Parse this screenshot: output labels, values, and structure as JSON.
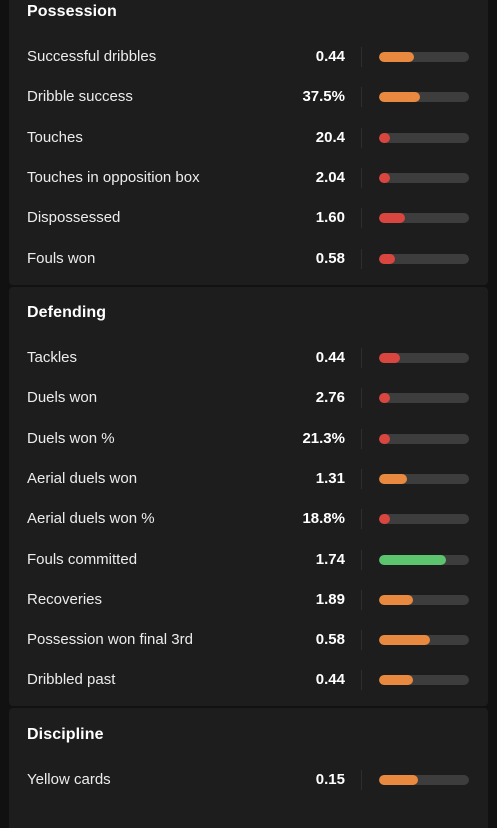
{
  "colors": {
    "orange": "#e8893f",
    "red": "#d9453f",
    "green": "#5cc46e",
    "track": "#3d3d3d"
  },
  "sections": [
    {
      "title": "Possession",
      "rows": [
        {
          "label": "Successful dribbles",
          "value": "0.44",
          "percentile": 0.39,
          "color": "orange"
        },
        {
          "label": "Dribble success",
          "value": "37.5%",
          "percentile": 0.46,
          "color": "orange"
        },
        {
          "label": "Touches",
          "value": "20.4",
          "percentile": 0.12,
          "color": "red"
        },
        {
          "label": "Touches in opposition box",
          "value": "2.04",
          "percentile": 0.12,
          "color": "red"
        },
        {
          "label": "Dispossessed",
          "value": "1.60",
          "percentile": 0.29,
          "color": "red"
        },
        {
          "label": "Fouls won",
          "value": "0.58",
          "percentile": 0.18,
          "color": "red"
        }
      ]
    },
    {
      "title": "Defending",
      "rows": [
        {
          "label": "Tackles",
          "value": "0.44",
          "percentile": 0.23,
          "color": "red"
        },
        {
          "label": "Duels won",
          "value": "2.76",
          "percentile": 0.12,
          "color": "red"
        },
        {
          "label": "Duels won %",
          "value": "21.3%",
          "percentile": 0.12,
          "color": "red"
        },
        {
          "label": "Aerial duels won",
          "value": "1.31",
          "percentile": 0.31,
          "color": "orange"
        },
        {
          "label": "Aerial duels won %",
          "value": "18.8%",
          "percentile": 0.12,
          "color": "red"
        },
        {
          "label": "Fouls committed",
          "value": "1.74",
          "percentile": 0.74,
          "color": "green"
        },
        {
          "label": "Recoveries",
          "value": "1.89",
          "percentile": 0.38,
          "color": "orange"
        },
        {
          "label": "Possession won final 3rd",
          "value": "0.58",
          "percentile": 0.57,
          "color": "orange"
        },
        {
          "label": "Dribbled past",
          "value": "0.44",
          "percentile": 0.38,
          "color": "orange"
        }
      ]
    },
    {
      "title": "Discipline",
      "rows": [
        {
          "label": "Yellow cards",
          "value": "0.15",
          "percentile": 0.43,
          "color": "orange"
        }
      ]
    }
  ]
}
